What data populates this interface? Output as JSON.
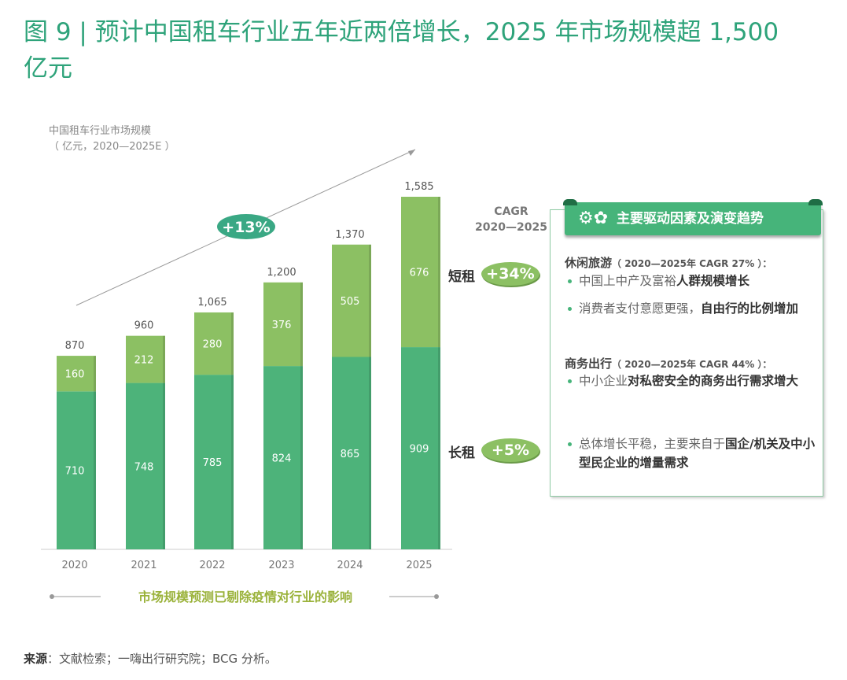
{
  "title": "图 9 | 预计中国租车行业五年近两倍增长，2025 年市场规模超 1,500 亿元",
  "chart_data": {
    "type": "bar",
    "stacked": true,
    "title": "中国租车行业市场规模",
    "subtitle": "（ 亿元，2020—2025E ）",
    "categories": [
      "2020",
      "2021",
      "2022",
      "2023",
      "2024",
      "2025"
    ],
    "series": [
      {
        "values": [
          710,
          748,
          785,
          824,
          865,
          909
        ],
        "color": "#4db37a"
      },
      {
        "values": [
          160,
          212,
          280,
          376,
          505,
          676
        ],
        "color": "#8cc063"
      }
    ],
    "totals": [
      "870",
      "960",
      "1,065",
      "1,200",
      "1,370",
      "1,585"
    ],
    "segment_labels": [
      "710",
      "748",
      "785",
      "824",
      "865",
      "909"
    ],
    "segment_labels_top": [
      "160",
      "212",
      "280",
      "376",
      "505",
      "676"
    ],
    "ylim": [
      0,
      1700
    ],
    "growth_annotation": "+13%",
    "note": "市场规模预测已剔除疫情对行业的影响"
  },
  "cagr": {
    "heading_1": "CAGR",
    "heading_2": "2020—2025",
    "short_label": "短租",
    "short_value": "+34%",
    "long_label": "长租",
    "long_value": "+5%"
  },
  "panel": {
    "title": "主要驱动因素及演变趋势",
    "section1": {
      "title": "休闲旅游",
      "detail": "（ 2020—2025年 CAGR 27% ）：",
      "b1_plain": "中国上中产及富裕",
      "b1_bold": "人群规模增长",
      "b2_plain": "消费者支付意愿更强，",
      "b2_bold": "自由行的比例增加"
    },
    "section2": {
      "title": "商务出行",
      "detail": "（ 2020—2025年 CAGR 44% ）：",
      "b1_plain": "中小企业",
      "b1_bold": "对私密安全的商务出行需求增大"
    },
    "section3": {
      "b1_plain": "总体增长平稳，主要来自于",
      "b1_bold": "国企/机关及中小型民企业的增量需求"
    }
  },
  "source": {
    "label": "来源",
    "text": "：文献检索；一嗨出行研究院；BCG 分析。"
  },
  "colors": {
    "title": "#2ea37a",
    "dark_bar": "#4db37a",
    "light_bar": "#8cc063",
    "pill": "#3aa884"
  }
}
